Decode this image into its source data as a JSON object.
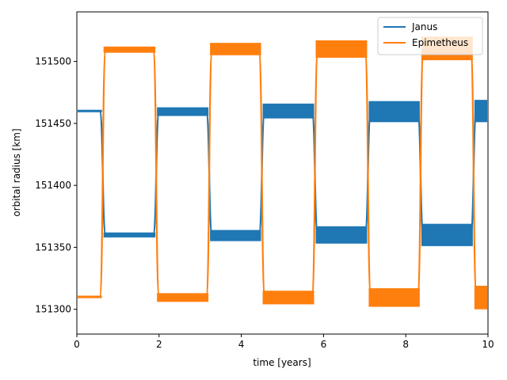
{
  "chart_data": {
    "type": "line",
    "title": "",
    "xlabel": "time [years]",
    "ylabel": "orbital radius [km]",
    "xlim": [
      0,
      10
    ],
    "ylim": [
      151280,
      151540
    ],
    "xticks": [
      0,
      2,
      4,
      6,
      8,
      10
    ],
    "yticks": [
      151300,
      151350,
      151400,
      151450,
      151500
    ],
    "grid": false,
    "legend_position": "top-right",
    "swap_times": [
      0.63,
      1.93,
      3.22,
      4.5,
      5.79,
      7.08,
      8.36,
      9.65
    ],
    "series": [
      {
        "name": "Janus",
        "color": "#1f77b4",
        "segments": [
          {
            "x": [
              0,
              0.63
            ],
            "low": 151459,
            "high": 151461
          },
          {
            "x": [
              0.63,
              1.93
            ],
            "low": 151358,
            "high": 151362
          },
          {
            "x": [
              1.93,
              3.22
            ],
            "low": 151456,
            "high": 151463
          },
          {
            "x": [
              3.22,
              4.5
            ],
            "low": 151355,
            "high": 151364
          },
          {
            "x": [
              4.5,
              5.79
            ],
            "low": 151454,
            "high": 151466
          },
          {
            "x": [
              5.79,
              7.08
            ],
            "low": 151353,
            "high": 151367
          },
          {
            "x": [
              7.08,
              8.36
            ],
            "low": 151451,
            "high": 151468
          },
          {
            "x": [
              8.36,
              9.65
            ],
            "low": 151351,
            "high": 151369
          },
          {
            "x": [
              9.65,
              10
            ],
            "low": 151451,
            "high": 151469
          }
        ]
      },
      {
        "name": "Epimetheus",
        "color": "#ff7f0e",
        "segments": [
          {
            "x": [
              0,
              0.63
            ],
            "low": 151309,
            "high": 151311
          },
          {
            "x": [
              0.63,
              1.93
            ],
            "low": 151507,
            "high": 151512
          },
          {
            "x": [
              1.93,
              3.22
            ],
            "low": 151306,
            "high": 151313
          },
          {
            "x": [
              3.22,
              4.5
            ],
            "low": 151505,
            "high": 151515
          },
          {
            "x": [
              4.5,
              5.79
            ],
            "low": 151304,
            "high": 151315
          },
          {
            "x": [
              5.79,
              7.08
            ],
            "low": 151503,
            "high": 151517
          },
          {
            "x": [
              7.08,
              8.36
            ],
            "low": 151302,
            "high": 151317
          },
          {
            "x": [
              8.36,
              9.65
            ],
            "low": 151501,
            "high": 151520
          },
          {
            "x": [
              9.65,
              10
            ],
            "low": 151300,
            "high": 151319
          }
        ]
      }
    ]
  }
}
